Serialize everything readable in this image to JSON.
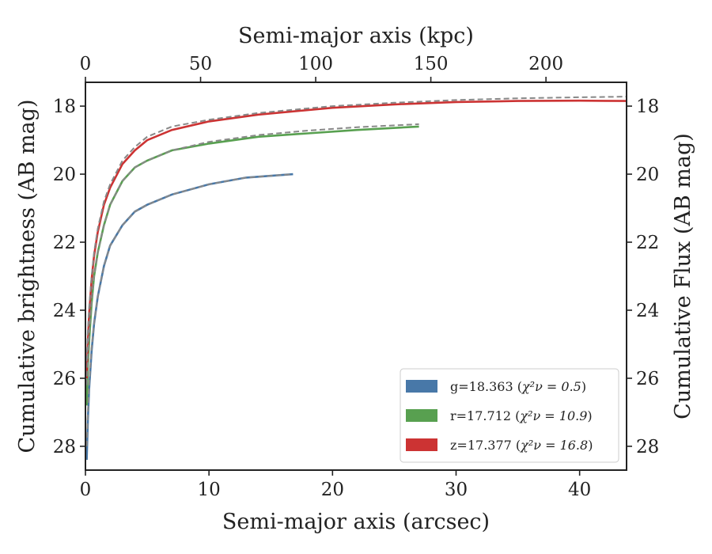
{
  "chart_data": {
    "type": "line",
    "xlabel": "Semi-major axis (arcsec)",
    "x2label": "Semi-major axis (kpc)",
    "ylabel": "Cumulative brightness (AB mag)",
    "y2label": "Cumulative Flux (AB mag)",
    "xlim": [
      0,
      43.8
    ],
    "x2lim": [
      0,
      235
    ],
    "ylim": [
      28.7,
      17.3
    ],
    "y_inverted": true,
    "x_ticks": [
      0,
      10,
      20,
      30,
      40
    ],
    "x_tick_labels": [
      "0",
      "10",
      "20",
      "30",
      "40"
    ],
    "x2_ticks": [
      0,
      50,
      100,
      150,
      200
    ],
    "x2_tick_labels": [
      "0",
      "50",
      "100",
      "150",
      "200"
    ],
    "y_ticks": [
      18,
      20,
      22,
      24,
      26,
      28
    ],
    "y_tick_labels": [
      "18",
      "20",
      "22",
      "24",
      "26",
      "28"
    ],
    "grid": false,
    "legend_position": "lower-right",
    "series": [
      {
        "name": "g=18.363",
        "chi_label": "χ²ν = 0.5",
        "color": "#4878a8",
        "x": [
          0.1,
          0.2,
          0.3,
          0.5,
          0.7,
          1.0,
          1.5,
          2.0,
          3.0,
          4.0,
          5.0,
          7.0,
          10.0,
          13.0,
          16.8
        ],
        "y": [
          28.4,
          27.2,
          26.3,
          25.2,
          24.4,
          23.6,
          22.7,
          22.1,
          21.5,
          21.1,
          20.9,
          20.6,
          20.3,
          20.1,
          20.0
        ],
        "model_x": [
          0.1,
          0.2,
          0.3,
          0.5,
          0.7,
          1.0,
          1.5,
          2.0,
          3.0,
          4.0,
          5.0,
          7.0,
          10.0,
          13.0,
          16.8
        ],
        "model_y": [
          28.0,
          27.0,
          26.2,
          25.1,
          24.4,
          23.6,
          22.7,
          22.1,
          21.5,
          21.1,
          20.9,
          20.6,
          20.3,
          20.1,
          20.0
        ]
      },
      {
        "name": "r=17.712",
        "chi_label": "χ²ν = 10.9",
        "color": "#58a050",
        "x": [
          0.1,
          0.2,
          0.3,
          0.5,
          0.7,
          1.0,
          1.5,
          2.0,
          3.0,
          4.0,
          5.0,
          7.0,
          10.0,
          14.0,
          18.0,
          22.0,
          27.0
        ],
        "y": [
          26.8,
          25.6,
          24.9,
          23.8,
          23.0,
          22.3,
          21.5,
          20.9,
          20.2,
          19.8,
          19.6,
          19.3,
          19.1,
          18.9,
          18.8,
          18.7,
          18.6
        ],
        "model_x": [
          0.1,
          0.2,
          0.3,
          0.5,
          0.7,
          1.0,
          1.5,
          2.0,
          3.0,
          4.0,
          5.0,
          7.0,
          10.0,
          14.0,
          18.0,
          22.0,
          27.0
        ],
        "model_y": [
          26.2,
          25.3,
          24.7,
          23.7,
          23.0,
          22.3,
          21.5,
          20.9,
          20.2,
          19.8,
          19.6,
          19.3,
          19.05,
          18.85,
          18.72,
          18.62,
          18.53
        ]
      },
      {
        "name": "z=17.377",
        "chi_label": "χ²ν = 16.8",
        "color": "#cc3333",
        "x": [
          0.1,
          0.2,
          0.3,
          0.5,
          0.7,
          1.0,
          1.5,
          2.0,
          3.0,
          4.0,
          5.0,
          7.0,
          10.0,
          14.0,
          20.0,
          25.0,
          30.0,
          35.0,
          40.0,
          43.8
        ],
        "y": [
          26.0,
          24.9,
          24.1,
          23.1,
          22.4,
          21.7,
          20.9,
          20.4,
          19.7,
          19.3,
          19.0,
          18.7,
          18.45,
          18.25,
          18.05,
          17.95,
          17.88,
          17.85,
          17.84,
          17.85
        ],
        "model_x": [
          0.1,
          0.2,
          0.3,
          0.5,
          0.7,
          1.0,
          1.5,
          2.0,
          3.0,
          4.0,
          5.0,
          7.0,
          10.0,
          14.0,
          20.0,
          25.0,
          30.0,
          35.0,
          40.0,
          43.8
        ],
        "model_y": [
          25.5,
          24.6,
          23.9,
          23.0,
          22.3,
          21.6,
          20.8,
          20.3,
          19.6,
          19.2,
          18.9,
          18.6,
          18.4,
          18.2,
          18.0,
          17.9,
          17.82,
          17.77,
          17.74,
          17.72
        ]
      }
    ]
  }
}
